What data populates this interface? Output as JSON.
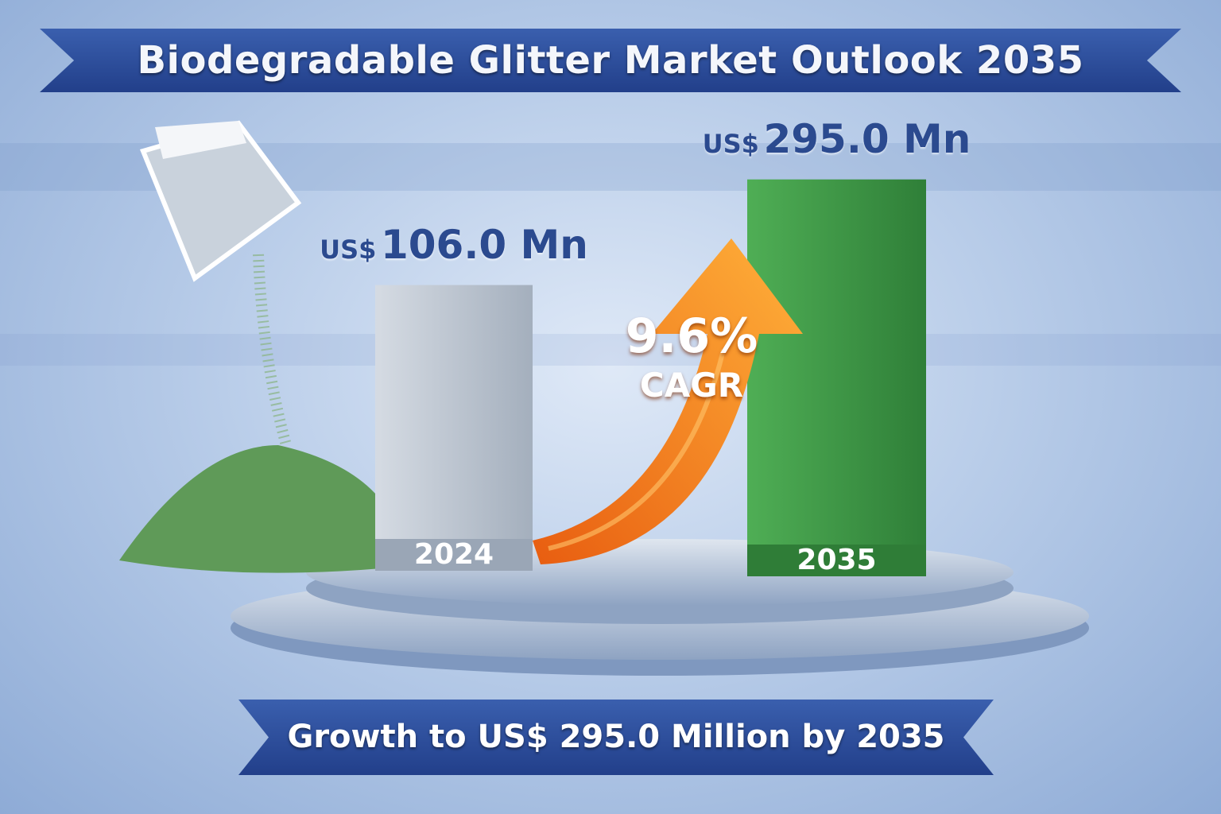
{
  "title": {
    "text": "Biodegradable Glitter Market Outlook 2035"
  },
  "footer": {
    "text": "Growth to US$ 295.0 Million by 2035"
  },
  "cagr": {
    "value": "9.6%",
    "label": "CAGR"
  },
  "colors": {
    "ribbon": "#2a4b96",
    "bar_2024": "#b8c2cf",
    "bar_2035": "#3e9a45",
    "arrow": "#f07a18",
    "value_text": "#2b4a8f"
  },
  "chart_data": {
    "type": "bar",
    "title": "Biodegradable Glitter Market Outlook 2035",
    "categories": [
      "2024",
      "2035"
    ],
    "values": [
      106.0,
      295.0
    ],
    "unit": "US$ Mn",
    "labels": [
      {
        "currency": "US$",
        "amount": "106.0 Mn"
      },
      {
        "currency": "US$",
        "amount": "295.0 Mn"
      }
    ],
    "annotation": "9.6% CAGR"
  }
}
